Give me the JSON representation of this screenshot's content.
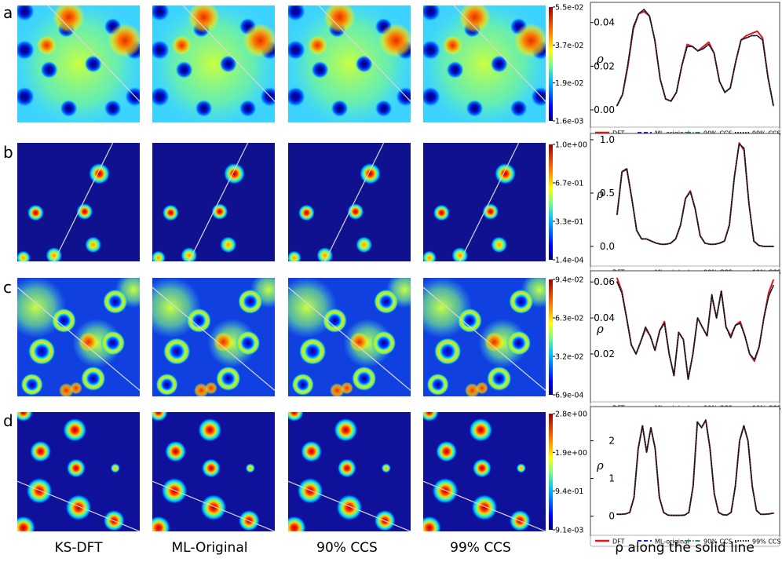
{
  "rows": [
    {
      "letter": "a",
      "colorbar_ticks": [
        "5.5e-02",
        "3.7e-02",
        "1.9e-02",
        "1.6e-03"
      ]
    },
    {
      "letter": "b",
      "colorbar_ticks": [
        "1.0e+00",
        "6.7e-01",
        "3.3e-01",
        "1.4e-04"
      ]
    },
    {
      "letter": "c",
      "colorbar_ticks": [
        "9.4e-02",
        "6.3e-02",
        "3.2e-02",
        "6.9e-04"
      ]
    },
    {
      "letter": "d",
      "colorbar_ticks": [
        "2.8e+00",
        "1.9e+00",
        "9.4e-01",
        "9.1e-03"
      ]
    }
  ],
  "column_labels": [
    "KS-DFT",
    "ML-Original",
    "90% CCS",
    "99% CCS"
  ],
  "line_column_label": "ρ along the solid line",
  "colors": {
    "dft": "#e8141c",
    "ml": "#1f1fd6",
    "ccs90": "#2e8b57",
    "ccs99": "#111111"
  },
  "chart_data": [
    {
      "type": "line",
      "ylabel": "ρ",
      "ylim": [
        0,
        0.046
      ],
      "yticks": [
        "0.00",
        "0.02",
        "0.04"
      ],
      "ytick_values": [
        0,
        0.02,
        0.04
      ],
      "legend": [
        "DFT",
        "ML-original",
        "90% CCS",
        "99% CCS"
      ],
      "series": [
        {
          "name": "DFT",
          "values": [
            0.002,
            0.007,
            0.02,
            0.037,
            0.044,
            0.045,
            0.043,
            0.032,
            0.014,
            0.005,
            0.004,
            0.008,
            0.02,
            0.03,
            0.029,
            0.027,
            0.029,
            0.031,
            0.026,
            0.013,
            0.008,
            0.01,
            0.022,
            0.032,
            0.034,
            0.035,
            0.036,
            0.033,
            0.015,
            0.002
          ]
        },
        {
          "name": "ML-original",
          "values": [
            0.002,
            0.007,
            0.021,
            0.038,
            0.044,
            0.046,
            0.043,
            0.032,
            0.014,
            0.005,
            0.004,
            0.008,
            0.02,
            0.029,
            0.029,
            0.027,
            0.028,
            0.03,
            0.026,
            0.013,
            0.008,
            0.01,
            0.022,
            0.032,
            0.033,
            0.034,
            0.034,
            0.032,
            0.015,
            0.002
          ]
        },
        {
          "name": "90% CCS",
          "values": [
            0.002,
            0.007,
            0.021,
            0.038,
            0.044,
            0.046,
            0.043,
            0.032,
            0.014,
            0.005,
            0.004,
            0.008,
            0.02,
            0.029,
            0.029,
            0.027,
            0.028,
            0.03,
            0.026,
            0.013,
            0.008,
            0.01,
            0.022,
            0.032,
            0.033,
            0.034,
            0.034,
            0.032,
            0.015,
            0.002
          ]
        },
        {
          "name": "99% CCS",
          "values": [
            0.002,
            0.007,
            0.021,
            0.038,
            0.044,
            0.046,
            0.043,
            0.032,
            0.014,
            0.005,
            0.004,
            0.008,
            0.02,
            0.029,
            0.029,
            0.027,
            0.028,
            0.03,
            0.026,
            0.013,
            0.008,
            0.01,
            0.022,
            0.032,
            0.033,
            0.034,
            0.034,
            0.032,
            0.015,
            0.002
          ]
        }
      ]
    },
    {
      "type": "line",
      "ylabel": "ρ",
      "ylim": [
        -0.03,
        1.0
      ],
      "yticks": [
        "0.0",
        "0.5",
        "1.0"
      ],
      "ytick_values": [
        0,
        0.5,
        1.0
      ],
      "legend": [
        "DFT",
        "ML-original",
        "90% CCS",
        "99% CCS"
      ],
      "series": [
        {
          "name": "DFT",
          "values": [
            0.3,
            0.7,
            0.72,
            0.45,
            0.15,
            0.07,
            0.07,
            0.05,
            0.03,
            0.02,
            0.02,
            0.03,
            0.07,
            0.2,
            0.45,
            0.52,
            0.35,
            0.1,
            0.03,
            0.02,
            0.02,
            0.03,
            0.05,
            0.2,
            0.65,
            0.97,
            0.9,
            0.4,
            0.05,
            0.01,
            0.0,
            0.0,
            0.0
          ]
        },
        {
          "name": "ML-original",
          "values": [
            0.3,
            0.7,
            0.73,
            0.45,
            0.15,
            0.07,
            0.07,
            0.05,
            0.03,
            0.02,
            0.02,
            0.03,
            0.07,
            0.2,
            0.45,
            0.51,
            0.35,
            0.1,
            0.03,
            0.02,
            0.02,
            0.03,
            0.05,
            0.2,
            0.65,
            0.96,
            0.92,
            0.4,
            0.05,
            0.01,
            0.0,
            0.0,
            0.0
          ]
        },
        {
          "name": "90% CCS",
          "values": [
            0.3,
            0.7,
            0.73,
            0.45,
            0.15,
            0.07,
            0.07,
            0.05,
            0.03,
            0.02,
            0.02,
            0.03,
            0.07,
            0.2,
            0.45,
            0.51,
            0.35,
            0.1,
            0.03,
            0.02,
            0.02,
            0.03,
            0.05,
            0.2,
            0.65,
            0.96,
            0.92,
            0.4,
            0.05,
            0.01,
            0.0,
            0.0,
            0.0
          ]
        },
        {
          "name": "99% CCS",
          "values": [
            0.3,
            0.7,
            0.73,
            0.45,
            0.15,
            0.07,
            0.07,
            0.05,
            0.03,
            0.02,
            0.02,
            0.03,
            0.07,
            0.2,
            0.45,
            0.51,
            0.35,
            0.1,
            0.03,
            0.02,
            0.02,
            0.03,
            0.05,
            0.2,
            0.65,
            0.96,
            0.92,
            0.4,
            0.05,
            0.01,
            0.0,
            0.0,
            0.0
          ]
        }
      ]
    },
    {
      "type": "line",
      "ylabel": "ρ",
      "ylim": [
        0.003,
        0.064
      ],
      "yticks": [
        "0.02",
        "0.04",
        "0.06"
      ],
      "ytick_values": [
        0.02,
        0.04,
        0.06
      ],
      "legend": [
        "DFT",
        "ML-original",
        "90% CCS",
        "99% CCS"
      ],
      "series": [
        {
          "name": "DFT",
          "values": [
            0.062,
            0.055,
            0.04,
            0.025,
            0.02,
            0.027,
            0.034,
            0.03,
            0.022,
            0.033,
            0.038,
            0.02,
            0.008,
            0.032,
            0.028,
            0.006,
            0.02,
            0.04,
            0.035,
            0.03,
            0.052,
            0.04,
            0.055,
            0.035,
            0.03,
            0.036,
            0.038,
            0.03,
            0.02,
            0.016,
            0.024,
            0.04,
            0.054,
            0.061
          ]
        },
        {
          "name": "ML-original",
          "values": [
            0.06,
            0.054,
            0.04,
            0.025,
            0.02,
            0.027,
            0.035,
            0.03,
            0.022,
            0.033,
            0.037,
            0.02,
            0.008,
            0.032,
            0.028,
            0.006,
            0.02,
            0.04,
            0.035,
            0.03,
            0.053,
            0.04,
            0.055,
            0.035,
            0.029,
            0.036,
            0.037,
            0.03,
            0.02,
            0.017,
            0.024,
            0.04,
            0.052,
            0.058
          ]
        },
        {
          "name": "90% CCS",
          "values": [
            0.06,
            0.054,
            0.04,
            0.025,
            0.02,
            0.027,
            0.035,
            0.03,
            0.022,
            0.033,
            0.037,
            0.02,
            0.008,
            0.032,
            0.028,
            0.006,
            0.02,
            0.04,
            0.035,
            0.03,
            0.053,
            0.04,
            0.055,
            0.035,
            0.029,
            0.036,
            0.037,
            0.03,
            0.02,
            0.017,
            0.024,
            0.04,
            0.052,
            0.058
          ]
        },
        {
          "name": "99% CCS",
          "values": [
            0.06,
            0.054,
            0.04,
            0.025,
            0.02,
            0.027,
            0.035,
            0.03,
            0.022,
            0.033,
            0.037,
            0.02,
            0.008,
            0.032,
            0.028,
            0.006,
            0.02,
            0.04,
            0.035,
            0.03,
            0.053,
            0.04,
            0.055,
            0.035,
            0.029,
            0.036,
            0.037,
            0.03,
            0.02,
            0.017,
            0.024,
            0.04,
            0.052,
            0.058
          ]
        }
      ]
    },
    {
      "type": "line",
      "ylabel": "ρ",
      "ylim": [
        -0.05,
        2.7
      ],
      "yticks": [
        "0",
        "1",
        "2"
      ],
      "ytick_values": [
        0,
        1,
        2
      ],
      "legend": [
        "DFT",
        "ML-original",
        "90% CCS",
        "99% CCS"
      ],
      "series": [
        {
          "name": "DFT",
          "values": [
            0.05,
            0.05,
            0.06,
            0.1,
            0.5,
            1.8,
            2.4,
            1.7,
            2.35,
            1.8,
            0.5,
            0.1,
            0.03,
            0.02,
            0.02,
            0.02,
            0.03,
            0.1,
            0.8,
            2.5,
            2.35,
            2.55,
            1.8,
            0.6,
            0.1,
            0.04,
            0.03,
            0.1,
            0.8,
            2.0,
            2.4,
            2.0,
            0.8,
            0.15,
            0.05,
            0.05,
            0.06,
            0.08
          ]
        },
        {
          "name": "ML-original",
          "values": [
            0.05,
            0.05,
            0.06,
            0.1,
            0.5,
            1.8,
            2.4,
            1.7,
            2.35,
            1.8,
            0.5,
            0.1,
            0.03,
            0.02,
            0.02,
            0.02,
            0.03,
            0.1,
            0.8,
            2.5,
            2.35,
            2.55,
            1.8,
            0.6,
            0.1,
            0.04,
            0.03,
            0.1,
            0.8,
            2.0,
            2.4,
            2.0,
            0.8,
            0.15,
            0.05,
            0.05,
            0.06,
            0.08
          ]
        },
        {
          "name": "90% CCS",
          "values": [
            0.05,
            0.05,
            0.06,
            0.1,
            0.5,
            1.8,
            2.4,
            1.7,
            2.35,
            1.8,
            0.5,
            0.1,
            0.03,
            0.02,
            0.02,
            0.02,
            0.03,
            0.1,
            0.8,
            2.5,
            2.35,
            2.55,
            1.8,
            0.6,
            0.1,
            0.04,
            0.03,
            0.1,
            0.8,
            2.0,
            2.4,
            2.0,
            0.8,
            0.15,
            0.05,
            0.05,
            0.06,
            0.08
          ]
        },
        {
          "name": "99% CCS",
          "values": [
            0.05,
            0.05,
            0.06,
            0.1,
            0.5,
            1.8,
            2.4,
            1.7,
            2.35,
            1.8,
            0.5,
            0.1,
            0.03,
            0.02,
            0.02,
            0.02,
            0.03,
            0.1,
            0.8,
            2.5,
            2.35,
            2.55,
            1.8,
            0.6,
            0.1,
            0.04,
            0.03,
            0.1,
            0.8,
            2.0,
            2.4,
            2.0,
            0.8,
            0.15,
            0.05,
            0.05,
            0.06,
            0.08
          ]
        }
      ]
    }
  ]
}
